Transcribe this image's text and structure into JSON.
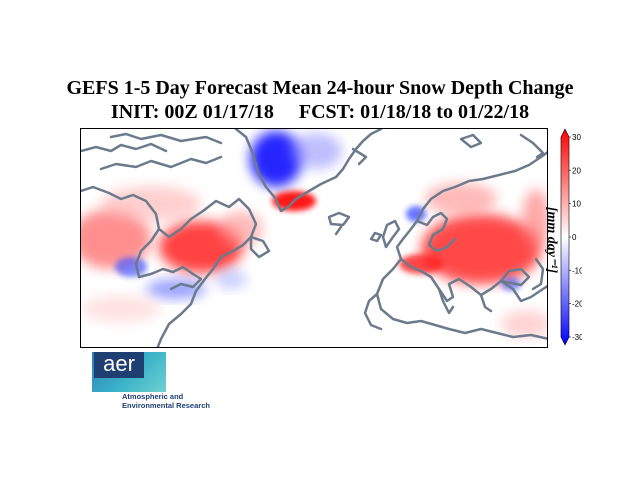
{
  "title": {
    "line1": "GEFS 1-5 Day Forecast Mean 24-hour Snow Depth Change",
    "line2": "INIT: 00Z 01/17/18     FCST: 01/18/18 to 01/22/18"
  },
  "colorbar": {
    "label": "[mm day⁻¹]",
    "ticks": [
      "30",
      "20",
      "10",
      "0",
      "-10",
      "-20",
      "-30"
    ],
    "min": -30,
    "max": 30,
    "colors": {
      "negative": "#0000ff",
      "zero": "#ffffff",
      "positive": "#ff0000"
    }
  },
  "logo": {
    "word": "aer",
    "line1": "Atmospheric and",
    "line2": "Environmental Research"
  },
  "map": {
    "coastline_color": "#6b7b8c",
    "regions": [
      {
        "name": "greenland-east-decrease",
        "value": -25
      },
      {
        "name": "greenland-southeast-increase",
        "value": 28
      },
      {
        "name": "eastern-canada-increase",
        "value": 30
      },
      {
        "name": "western-north-america-increase",
        "value": 22
      },
      {
        "name": "great-lakes-decrease",
        "value": -18
      },
      {
        "name": "eastern-europe-increase",
        "value": 28
      },
      {
        "name": "alps-balkans-increase",
        "value": 26
      },
      {
        "name": "scandinavia-mixed",
        "value": 12
      },
      {
        "name": "caspian-decrease",
        "value": -15
      }
    ]
  }
}
